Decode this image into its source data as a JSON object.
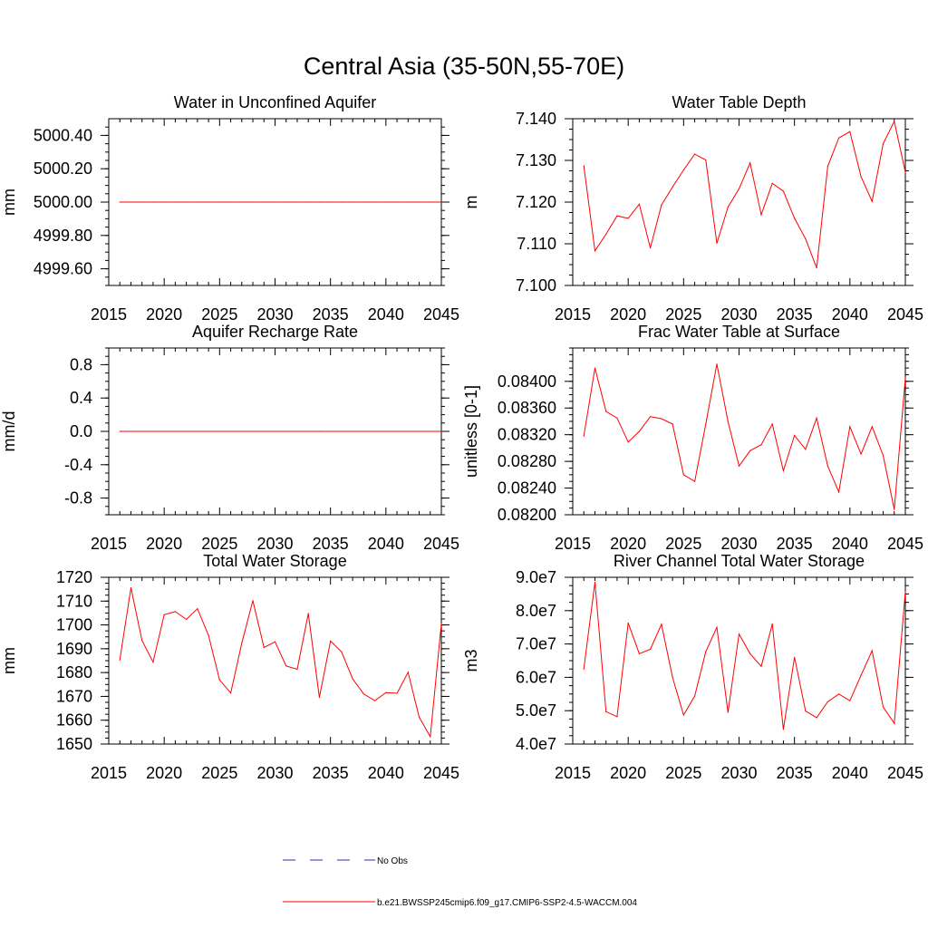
{
  "figure_title": "Central Asia (35-50N,55-70E)",
  "legend": [
    {
      "label": "No Obs",
      "color": "#2b2bb0",
      "style": "dashed"
    },
    {
      "label": "b.e21.BWSSP245cmip6.f09_g17.CMIP6-SSP2-4.5-WACCM.004",
      "color": "#ff0000",
      "style": "solid"
    }
  ],
  "chart_data": [
    {
      "type": "line",
      "title": "Water in Unconfined Aquifer",
      "ylabel": "mm",
      "xlim": [
        2015,
        2045
      ],
      "ylim": [
        4999.5,
        5000.5
      ],
      "xticks": [
        2015,
        2020,
        2025,
        2030,
        2035,
        2040,
        2045
      ],
      "xtick_labels": [
        "2015",
        "2020",
        "2025",
        "2030",
        "2035",
        "2040",
        "2045"
      ],
      "yticks": [
        4999.6,
        4999.8,
        5000.0,
        5000.2,
        5000.4
      ],
      "ytick_labels": [
        "4999.60",
        "4999.80",
        "5000.00",
        "5000.20",
        "5000.40"
      ],
      "x": [
        2016,
        2017,
        2018,
        2019,
        2020,
        2021,
        2022,
        2023,
        2024,
        2025,
        2026,
        2027,
        2028,
        2029,
        2030,
        2031,
        2032,
        2033,
        2034,
        2035,
        2036,
        2037,
        2038,
        2039,
        2040,
        2041,
        2042,
        2043,
        2044,
        2045
      ],
      "series": [
        {
          "color": "#ff0000",
          "values": [
            5000,
            5000,
            5000,
            5000,
            5000,
            5000,
            5000,
            5000,
            5000,
            5000,
            5000,
            5000,
            5000,
            5000,
            5000,
            5000,
            5000,
            5000,
            5000,
            5000,
            5000,
            5000,
            5000,
            5000,
            5000,
            5000,
            5000,
            5000,
            5000,
            5000
          ]
        }
      ]
    },
    {
      "type": "line",
      "title": "Water Table Depth",
      "ylabel": "m",
      "xlim": [
        2015,
        2045
      ],
      "ylim": [
        7.1,
        7.14
      ],
      "xticks": [
        2015,
        2020,
        2025,
        2030,
        2035,
        2040,
        2045
      ],
      "xtick_labels": [
        "2015",
        "2020",
        "2025",
        "2030",
        "2035",
        "2040",
        "2045"
      ],
      "yticks": [
        7.1,
        7.11,
        7.12,
        7.13,
        7.14
      ],
      "ytick_labels": [
        "7.100",
        "7.110",
        "7.120",
        "7.130",
        "7.140"
      ],
      "x": [
        2016,
        2017,
        2018,
        2019,
        2020,
        2021,
        2022,
        2023,
        2024,
        2025,
        2026,
        2027,
        2028,
        2029,
        2030,
        2031,
        2032,
        2033,
        2034,
        2035,
        2036,
        2037,
        2038,
        2039,
        2040,
        2041,
        2042,
        2043,
        2044,
        2045
      ],
      "series": [
        {
          "color": "#ff0000",
          "values": [
            7.1287,
            7.1083,
            7.1123,
            7.1167,
            7.1161,
            7.1195,
            7.109,
            7.1193,
            7.1236,
            7.1277,
            7.1315,
            7.1301,
            7.1101,
            7.1188,
            7.1232,
            7.1294,
            7.117,
            7.1245,
            7.1226,
            7.1161,
            7.1112,
            7.1042,
            7.1286,
            7.1354,
            7.1369,
            7.1261,
            7.1202,
            7.134,
            7.1394,
            7.1272
          ]
        }
      ]
    },
    {
      "type": "line",
      "title": "Aquifer Recharge Rate",
      "ylabel": "mm/d",
      "xlim": [
        2015,
        2045
      ],
      "ylim": [
        -1.0,
        1.0
      ],
      "xticks": [
        2015,
        2020,
        2025,
        2030,
        2035,
        2040,
        2045
      ],
      "xtick_labels": [
        "2015",
        "2020",
        "2025",
        "2030",
        "2035",
        "2040",
        "2045"
      ],
      "yticks": [
        -0.8,
        -0.4,
        0.0,
        0.4,
        0.8
      ],
      "ytick_labels": [
        "-0.8",
        "-0.4",
        "0.0",
        "0.4",
        "0.8"
      ],
      "x": [
        2016,
        2017,
        2018,
        2019,
        2020,
        2021,
        2022,
        2023,
        2024,
        2025,
        2026,
        2027,
        2028,
        2029,
        2030,
        2031,
        2032,
        2033,
        2034,
        2035,
        2036,
        2037,
        2038,
        2039,
        2040,
        2041,
        2042,
        2043,
        2044,
        2045
      ],
      "series": [
        {
          "color": "#ff0000",
          "values": [
            0,
            0,
            0,
            0,
            0,
            0,
            0,
            0,
            0,
            0,
            0,
            0,
            0,
            0,
            0,
            0,
            0,
            0,
            0,
            0,
            0,
            0,
            0,
            0,
            0,
            0,
            0,
            0,
            0,
            0
          ]
        }
      ]
    },
    {
      "type": "line",
      "title": "Frac Water Table at Surface",
      "ylabel": "unitless [0-1]",
      "xlim": [
        2015,
        2045
      ],
      "ylim": [
        0.082,
        0.0845
      ],
      "xticks": [
        2015,
        2020,
        2025,
        2030,
        2035,
        2040,
        2045
      ],
      "xtick_labels": [
        "2015",
        "2020",
        "2025",
        "2030",
        "2035",
        "2040",
        "2045"
      ],
      "yticks": [
        0.082,
        0.0824,
        0.0828,
        0.0832,
        0.0836,
        0.084
      ],
      "ytick_labels": [
        "0.08200",
        "0.08240",
        "0.08280",
        "0.08320",
        "0.08360",
        "0.08400"
      ],
      "x": [
        2016,
        2017,
        2018,
        2019,
        2020,
        2021,
        2022,
        2023,
        2024,
        2025,
        2026,
        2027,
        2028,
        2029,
        2030,
        2031,
        2032,
        2033,
        2034,
        2035,
        2036,
        2037,
        2038,
        2039,
        2040,
        2041,
        2042,
        2043,
        2044,
        2045
      ],
      "series": [
        {
          "color": "#ff0000",
          "values": [
            0.08318,
            0.0842,
            0.08355,
            0.08345,
            0.08309,
            0.08325,
            0.08347,
            0.08344,
            0.08336,
            0.0826,
            0.0825,
            0.08336,
            0.08426,
            0.0834,
            0.08273,
            0.08296,
            0.08305,
            0.08336,
            0.08266,
            0.08319,
            0.08298,
            0.08345,
            0.08273,
            0.08234,
            0.08332,
            0.08291,
            0.08332,
            0.08289,
            0.08208,
            0.08405
          ]
        }
      ]
    },
    {
      "type": "line",
      "title": "Total Water Storage",
      "ylabel": "mm",
      "xlim": [
        2015,
        2045
      ],
      "ylim": [
        1650,
        1720
      ],
      "xticks": [
        2015,
        2020,
        2025,
        2030,
        2035,
        2040,
        2045
      ],
      "xtick_labels": [
        "2015",
        "2020",
        "2025",
        "2030",
        "2035",
        "2040",
        "2045"
      ],
      "yticks": [
        1650,
        1660,
        1670,
        1680,
        1690,
        1700,
        1710,
        1720
      ],
      "ytick_labels": [
        "1650",
        "1660",
        "1670",
        "1680",
        "1690",
        "1700",
        "1710",
        "1720"
      ],
      "x": [
        2016,
        2017,
        2018,
        2019,
        2020,
        2021,
        2022,
        2023,
        2024,
        2025,
        2026,
        2027,
        2028,
        2029,
        2030,
        2031,
        2032,
        2033,
        2034,
        2035,
        2036,
        2037,
        2038,
        2039,
        2040,
        2041,
        2042,
        2043,
        2044,
        2045
      ],
      "series": [
        {
          "color": "#ff0000",
          "values": [
            1685.3,
            1715.6,
            1693.5,
            1684.4,
            1704.3,
            1705.6,
            1702.3,
            1706.8,
            1695.6,
            1676.9,
            1671.4,
            1692.3,
            1710.2,
            1690.5,
            1692.9,
            1682.8,
            1681.4,
            1704.8,
            1669.6,
            1693.2,
            1688.7,
            1677.4,
            1671.0,
            1668.2,
            1671.6,
            1671.3,
            1680.1,
            1661.3,
            1653.1,
            1700.5
          ]
        }
      ]
    },
    {
      "type": "line",
      "title": "River Channel Total Water Storage",
      "ylabel": "m3",
      "xlim": [
        2015,
        2045
      ],
      "ylim": [
        40000000,
        90000000
      ],
      "xticks": [
        2015,
        2020,
        2025,
        2030,
        2035,
        2040,
        2045
      ],
      "xtick_labels": [
        "2015",
        "2020",
        "2025",
        "2030",
        "2035",
        "2040",
        "2045"
      ],
      "yticks": [
        40000000,
        50000000,
        60000000,
        70000000,
        80000000,
        90000000
      ],
      "ytick_labels": [
        "4.0e7",
        "5.0e7",
        "6.0e7",
        "7.0e7",
        "8.0e7",
        "9.0e7"
      ],
      "x": [
        2016,
        2017,
        2018,
        2019,
        2020,
        2021,
        2022,
        2023,
        2024,
        2025,
        2026,
        2027,
        2028,
        2029,
        2030,
        2031,
        2032,
        2033,
        2034,
        2035,
        2036,
        2037,
        2038,
        2039,
        2040,
        2041,
        2042,
        2043,
        2044,
        2045
      ],
      "series": [
        {
          "color": "#ff0000",
          "values": [
            62500000,
            88500000,
            49700000,
            48200000,
            76300000,
            67100000,
            68400000,
            75900000,
            60000000,
            48700000,
            54400000,
            67700000,
            75000000,
            49500000,
            73000000,
            67100000,
            63300000,
            76000000,
            44400000,
            66000000,
            49900000,
            47900000,
            52700000,
            55000000,
            53000000,
            60600000,
            68000000,
            51100000,
            46200000,
            85700000
          ]
        }
      ]
    }
  ]
}
